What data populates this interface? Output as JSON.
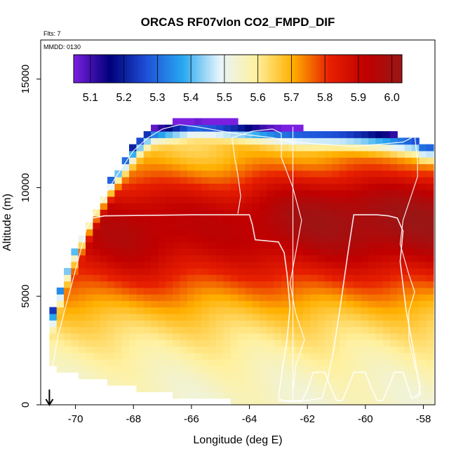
{
  "chart_data": {
    "type": "heatmap",
    "title": "ORCAS RF07vlon CO2_FMPD_DIF",
    "note_flights": "Flts: 7",
    "note_date": "MMDD: 0130",
    "xlabel": "Longitude (deg E)",
    "ylabel": "Altitude (m)",
    "xlim": [
      -71.2,
      -57.6
    ],
    "ylim": [
      0,
      16800
    ],
    "x_ticks": [
      -70,
      -68,
      -66,
      -64,
      -62,
      -60,
      -58
    ],
    "x_tick_labels": [
      "-70",
      "-68",
      "-66",
      "-64",
      "-62",
      "-60",
      "-58"
    ],
    "y_ticks": [
      0,
      5000,
      10000,
      15000
    ],
    "y_tick_labels": [
      "0",
      "5000",
      "10000",
      "15000"
    ],
    "colorbar": {
      "range": [
        5.05,
        6.03
      ],
      "ticks": [
        5.1,
        5.2,
        5.3,
        5.4,
        5.5,
        5.6,
        5.7,
        5.8,
        5.9,
        6.0
      ],
      "tick_labels": [
        "5.1",
        "5.2",
        "5.3",
        "5.4",
        "5.5",
        "5.6",
        "5.7",
        "5.8",
        "5.9",
        "6.0"
      ],
      "colors": [
        "#7a1fe0",
        "#00007a",
        "#1e50d8",
        "#28a8f0",
        "#e6f4fb",
        "#fff1a0",
        "#ffb000",
        "#e82000",
        "#c00000",
        "#9a1616"
      ]
    },
    "field_grid": {
      "x_start": -70.9,
      "x_step": 0.25,
      "alt_start": 0,
      "alt_step": 300,
      "note": "CO2_FMPD_DIF interpolated curtain; low values (~5.1-5.4) near 12-13 km, high values (~5.9-6.0) 6-10 km east of -64"
    },
    "top_boundary": [
      [
        -70.9,
        3900
      ],
      [
        -70.2,
        6600
      ],
      [
        -69.4,
        8800
      ],
      [
        -68.6,
        10800
      ],
      [
        -67.9,
        12100
      ],
      [
        -67.4,
        12800
      ],
      [
        -66.6,
        13100
      ],
      [
        -65.9,
        13300
      ],
      [
        -64.8,
        13100
      ],
      [
        -63.6,
        12900
      ],
      [
        -62.7,
        12800
      ],
      [
        -61.7,
        12700
      ],
      [
        -60.5,
        12600
      ],
      [
        -59.3,
        12500
      ],
      [
        -58.2,
        12300
      ],
      [
        -58.0,
        12000
      ]
    ],
    "bottom_boundary": [
      [
        -70.9,
        1700
      ],
      [
        -70.3,
        1500
      ],
      [
        -69.5,
        1200
      ],
      [
        -68.5,
        900
      ],
      [
        -67.5,
        600
      ],
      [
        -66.3,
        400
      ],
      [
        -65.0,
        200
      ],
      [
        -64.0,
        0
      ],
      [
        -57.9,
        0
      ]
    ],
    "flight_tracks": [
      [
        [
          -70.8,
          1700
        ],
        [
          -70.6,
          3200
        ],
        [
          -70.2,
          5200
        ],
        [
          -69.9,
          6700
        ],
        [
          -69.6,
          8200
        ],
        [
          -69.1,
          9400
        ],
        [
          -68.6,
          10500
        ],
        [
          -68.0,
          11700
        ],
        [
          -67.5,
          12300
        ],
        [
          -67.0,
          12700
        ],
        [
          -66.4,
          12900
        ],
        [
          -65.8,
          12800
        ],
        [
          -64.5,
          12500
        ],
        [
          -63.2,
          12300
        ],
        [
          -62.5,
          12100
        ],
        [
          -61.5,
          12000
        ],
        [
          -60.5,
          11900
        ],
        [
          -59.5,
          12000
        ],
        [
          -58.7,
          12100
        ],
        [
          -58.4,
          12300
        ]
      ],
      [
        [
          -69.4,
          8600
        ],
        [
          -69.0,
          8700
        ],
        [
          -66.0,
          8750
        ],
        [
          -64.0,
          8750
        ],
        [
          -63.9,
          8300
        ],
        [
          -63.8,
          7600
        ],
        [
          -63.4,
          7550
        ],
        [
          -63.0,
          7500
        ],
        [
          -62.8,
          7000
        ],
        [
          -62.7,
          6000
        ],
        [
          -62.6,
          4500
        ],
        [
          -62.7,
          3000
        ],
        [
          -62.85,
          1800
        ],
        [
          -63.0,
          300
        ],
        [
          -62.7,
          150
        ],
        [
          -62.2,
          150
        ],
        [
          -62.0,
          700
        ],
        [
          -61.8,
          1500
        ],
        [
          -61.4,
          1500
        ],
        [
          -61.2,
          800
        ],
        [
          -61.0,
          200
        ],
        [
          -60.8,
          200
        ],
        [
          -60.6,
          800
        ],
        [
          -60.4,
          1500
        ],
        [
          -60.0,
          1500
        ],
        [
          -59.8,
          800
        ],
        [
          -59.6,
          200
        ],
        [
          -59.4,
          200
        ],
        [
          -59.2,
          800
        ],
        [
          -59.0,
          1500
        ],
        [
          -58.7,
          1500
        ],
        [
          -58.4,
          300
        ],
        [
          -58.1,
          500
        ],
        [
          -58.3,
          2200
        ],
        [
          -58.6,
          4400
        ],
        [
          -58.8,
          6600
        ],
        [
          -58.7,
          8000
        ],
        [
          -58.9,
          8600
        ],
        [
          -59.2,
          8700
        ],
        [
          -59.6,
          8750
        ],
        [
          -60.4,
          8750
        ],
        [
          -60.6,
          7000
        ],
        [
          -60.9,
          4200
        ],
        [
          -61.1,
          2500
        ],
        [
          -61.3,
          1200
        ],
        [
          -61.5,
          300
        ],
        [
          -62.0,
          200
        ],
        [
          -63.0,
          180
        ]
      ],
      [
        [
          -64.4,
          8800
        ],
        [
          -64.3,
          9600
        ],
        [
          -64.4,
          10600
        ],
        [
          -64.5,
          11300
        ],
        [
          -64.6,
          12300
        ],
        [
          -63.9,
          12600
        ],
        [
          -63.2,
          12700
        ],
        [
          -62.9,
          12500
        ],
        [
          -62.9,
          11400
        ],
        [
          -62.5,
          10000
        ],
        [
          -62.2,
          8500
        ],
        [
          -62.4,
          7000
        ],
        [
          -62.6,
          5600
        ],
        [
          -62.4,
          4200
        ],
        [
          -62.1,
          3000
        ],
        [
          -62.4,
          1800
        ],
        [
          -62.5,
          600
        ]
      ],
      [
        [
          -62.5,
          12800
        ],
        [
          -62.5,
          11000
        ],
        [
          -62.5,
          9000
        ],
        [
          -62.5,
          7000
        ],
        [
          -62.5,
          5000
        ],
        [
          -62.5,
          3000
        ],
        [
          -62.5,
          1000
        ],
        [
          -62.5,
          150
        ]
      ],
      [
        [
          -58.3,
          12400
        ],
        [
          -58.2,
          11200
        ],
        [
          -58.2,
          10500
        ],
        [
          -58.4,
          9700
        ],
        [
          -58.7,
          8500
        ],
        [
          -58.8,
          7400
        ],
        [
          -58.5,
          6000
        ],
        [
          -58.3,
          5200
        ],
        [
          -58.5,
          4300
        ],
        [
          -58.5,
          3000
        ],
        [
          -58.3,
          1800
        ],
        [
          -58.1,
          900
        ],
        [
          -58.2,
          300
        ]
      ]
    ],
    "arrow_marker": {
      "x": -70.9,
      "y_top": 700,
      "y_bottom": 0,
      "direction": "down"
    }
  }
}
